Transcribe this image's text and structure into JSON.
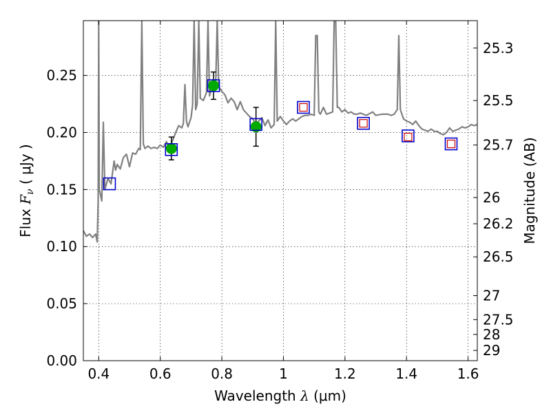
{
  "chart_data": {
    "type": "scatter",
    "title": "",
    "xlabel": "Wavelength  λ (μm)",
    "xlabel_parts": {
      "prefix": "Wavelength  ",
      "symbol": "λ",
      "unit": " (μm)"
    },
    "ylabel": "Flux  Fν  ( μJy )",
    "ylabel_parts": {
      "prefix": "Flux  ",
      "symbol": "F",
      "sub": "ν",
      "unit": "  ( μJy )"
    },
    "y2label": "Magnitude (AB)",
    "xlim": [
      0.35,
      1.63
    ],
    "ylim": [
      0.0,
      0.298
    ],
    "grid": true,
    "x_ticks": [
      {
        "value": 0.4,
        "label": "0.4"
      },
      {
        "value": 0.6,
        "label": "0.6"
      },
      {
        "value": 0.8,
        "label": "0.8"
      },
      {
        "value": 1.0,
        "label": "1"
      },
      {
        "value": 1.2,
        "label": "1.2"
      },
      {
        "value": 1.4,
        "label": "1.4"
      },
      {
        "value": 1.6,
        "label": "1.6"
      }
    ],
    "y_ticks": [
      {
        "value": 0.0,
        "label": "0.00"
      },
      {
        "value": 0.05,
        "label": "0.05"
      },
      {
        "value": 0.1,
        "label": "0.10"
      },
      {
        "value": 0.15,
        "label": "0.15"
      },
      {
        "value": 0.2,
        "label": "0.20"
      },
      {
        "value": 0.25,
        "label": "0.25"
      }
    ],
    "y2_ticks": [
      {
        "flux": 0.274,
        "label": "25.3"
      },
      {
        "flux": 0.228,
        "label": "25.5"
      },
      {
        "flux": 0.189,
        "label": "25.7"
      },
      {
        "flux": 0.143,
        "label": "26"
      },
      {
        "flux": 0.12,
        "label": "26.2"
      },
      {
        "flux": 0.091,
        "label": "26.5"
      },
      {
        "flux": 0.057,
        "label": "27"
      },
      {
        "flux": 0.036,
        "label": "27.5"
      },
      {
        "flux": 0.023,
        "label": "28"
      },
      {
        "flux": 0.009,
        "label": "29"
      }
    ],
    "colors": {
      "sed_line": "#808080",
      "observed_point": "#00aa00",
      "model_box": "#0000cc",
      "upper_limit_box": "#cc0000",
      "grid": "#000000",
      "error_bar": "#000000"
    },
    "series": [
      {
        "kind": "line",
        "points": [
          [
            0.35,
            0.114
          ],
          [
            0.36,
            0.109
          ],
          [
            0.37,
            0.111
          ],
          [
            0.38,
            0.108
          ],
          [
            0.39,
            0.111
          ],
          [
            0.395,
            0.104
          ],
          [
            0.398,
            0.14
          ],
          [
            0.4,
            0.298
          ],
          [
            0.402,
            0.15
          ],
          [
            0.41,
            0.14
          ],
          [
            0.415,
            0.209
          ],
          [
            0.42,
            0.15
          ],
          [
            0.43,
            0.16
          ],
          [
            0.44,
            0.155
          ],
          [
            0.45,
            0.175
          ],
          [
            0.455,
            0.167
          ],
          [
            0.46,
            0.172
          ],
          [
            0.47,
            0.168
          ],
          [
            0.48,
            0.178
          ],
          [
            0.49,
            0.181
          ],
          [
            0.5,
            0.17
          ],
          [
            0.51,
            0.182
          ],
          [
            0.52,
            0.181
          ],
          [
            0.53,
            0.186
          ],
          [
            0.535,
            0.185
          ],
          [
            0.54,
            0.298
          ],
          [
            0.545,
            0.19
          ],
          [
            0.55,
            0.186
          ],
          [
            0.56,
            0.188
          ],
          [
            0.57,
            0.186
          ],
          [
            0.58,
            0.187
          ],
          [
            0.59,
            0.186
          ],
          [
            0.6,
            0.189
          ],
          [
            0.61,
            0.187
          ],
          [
            0.62,
            0.192
          ],
          [
            0.63,
            0.186
          ],
          [
            0.65,
            0.2
          ],
          [
            0.66,
            0.206
          ],
          [
            0.67,
            0.204
          ],
          [
            0.675,
            0.208
          ],
          [
            0.68,
            0.242
          ],
          [
            0.685,
            0.21
          ],
          [
            0.69,
            0.205
          ],
          [
            0.7,
            0.213
          ],
          [
            0.705,
            0.224
          ],
          [
            0.71,
            0.298
          ],
          [
            0.715,
            0.22
          ],
          [
            0.72,
            0.225
          ],
          [
            0.725,
            0.298
          ],
          [
            0.73,
            0.23
          ],
          [
            0.74,
            0.228
          ],
          [
            0.75,
            0.235
          ],
          [
            0.755,
            0.298
          ],
          [
            0.76,
            0.232
          ],
          [
            0.77,
            0.243
          ],
          [
            0.78,
            0.243
          ],
          [
            0.785,
            0.298
          ],
          [
            0.79,
            0.24
          ],
          [
            0.8,
            0.236
          ],
          [
            0.81,
            0.233
          ],
          [
            0.82,
            0.226
          ],
          [
            0.83,
            0.23
          ],
          [
            0.84,
            0.227
          ],
          [
            0.85,
            0.22
          ],
          [
            0.86,
            0.227
          ],
          [
            0.87,
            0.22
          ],
          [
            0.88,
            0.217
          ],
          [
            0.89,
            0.214
          ],
          [
            0.9,
            0.212
          ],
          [
            0.91,
            0.208
          ],
          [
            0.92,
            0.21
          ],
          [
            0.93,
            0.213
          ],
          [
            0.94,
            0.206
          ],
          [
            0.95,
            0.211
          ],
          [
            0.96,
            0.204
          ],
          [
            0.97,
            0.207
          ],
          [
            0.975,
            0.298
          ],
          [
            0.98,
            0.21
          ],
          [
            0.99,
            0.214
          ],
          [
            1.0,
            0.21
          ],
          [
            1.01,
            0.207
          ],
          [
            1.02,
            0.21
          ],
          [
            1.03,
            0.212
          ],
          [
            1.04,
            0.21
          ],
          [
            1.05,
            0.212
          ],
          [
            1.06,
            0.214
          ],
          [
            1.07,
            0.215
          ],
          [
            1.08,
            0.215
          ],
          [
            1.09,
            0.216
          ],
          [
            1.1,
            0.215
          ],
          [
            1.105,
            0.285
          ],
          [
            1.11,
            0.285
          ],
          [
            1.115,
            0.218
          ],
          [
            1.12,
            0.216
          ],
          [
            1.13,
            0.222
          ],
          [
            1.14,
            0.216
          ],
          [
            1.15,
            0.217
          ],
          [
            1.16,
            0.218
          ],
          [
            1.165,
            0.298
          ],
          [
            1.17,
            0.298
          ],
          [
            1.175,
            0.222
          ],
          [
            1.18,
            0.222
          ],
          [
            1.19,
            0.218
          ],
          [
            1.2,
            0.22
          ],
          [
            1.21,
            0.217
          ],
          [
            1.22,
            0.218
          ],
          [
            1.23,
            0.216
          ],
          [
            1.24,
            0.216
          ],
          [
            1.25,
            0.217
          ],
          [
            1.27,
            0.215
          ],
          [
            1.29,
            0.218
          ],
          [
            1.3,
            0.215
          ],
          [
            1.32,
            0.216
          ],
          [
            1.34,
            0.216
          ],
          [
            1.35,
            0.215
          ],
          [
            1.36,
            0.216
          ],
          [
            1.37,
            0.22
          ],
          [
            1.375,
            0.285
          ],
          [
            1.38,
            0.22
          ],
          [
            1.39,
            0.212
          ],
          [
            1.4,
            0.21
          ],
          [
            1.41,
            0.209
          ],
          [
            1.42,
            0.207
          ],
          [
            1.43,
            0.21
          ],
          [
            1.44,
            0.206
          ],
          [
            1.45,
            0.203
          ],
          [
            1.46,
            0.202
          ],
          [
            1.47,
            0.201
          ],
          [
            1.48,
            0.203
          ],
          [
            1.49,
            0.201
          ],
          [
            1.5,
            0.201
          ],
          [
            1.51,
            0.199
          ],
          [
            1.52,
            0.198
          ],
          [
            1.53,
            0.2
          ],
          [
            1.54,
            0.204
          ],
          [
            1.55,
            0.201
          ],
          [
            1.56,
            0.202
          ],
          [
            1.57,
            0.203
          ],
          [
            1.58,
            0.205
          ],
          [
            1.59,
            0.204
          ],
          [
            1.6,
            0.205
          ],
          [
            1.61,
            0.207
          ],
          [
            1.62,
            0.206
          ],
          [
            1.63,
            0.207
          ]
        ]
      },
      {
        "kind": "observed",
        "points": [
          {
            "x": 0.636,
            "y": 0.186,
            "yerr": 0.01
          },
          {
            "x": 0.773,
            "y": 0.241,
            "yerr": 0.012
          },
          {
            "x": 0.911,
            "y": 0.205,
            "yerr": 0.017
          }
        ]
      },
      {
        "kind": "model_boxes",
        "points": [
          {
            "x": 0.435,
            "y": 0.155
          },
          {
            "x": 0.636,
            "y": 0.185
          },
          {
            "x": 0.773,
            "y": 0.241
          },
          {
            "x": 0.911,
            "y": 0.207
          },
          {
            "x": 1.065,
            "y": 0.222
          },
          {
            "x": 1.26,
            "y": 0.208
          },
          {
            "x": 1.405,
            "y": 0.197
          },
          {
            "x": 1.545,
            "y": 0.19
          }
        ]
      },
      {
        "kind": "upper_limits",
        "points": [
          {
            "x": 1.065,
            "y": 0.222
          },
          {
            "x": 1.26,
            "y": 0.208
          },
          {
            "x": 1.405,
            "y": 0.196
          },
          {
            "x": 1.545,
            "y": 0.19
          }
        ]
      }
    ]
  }
}
